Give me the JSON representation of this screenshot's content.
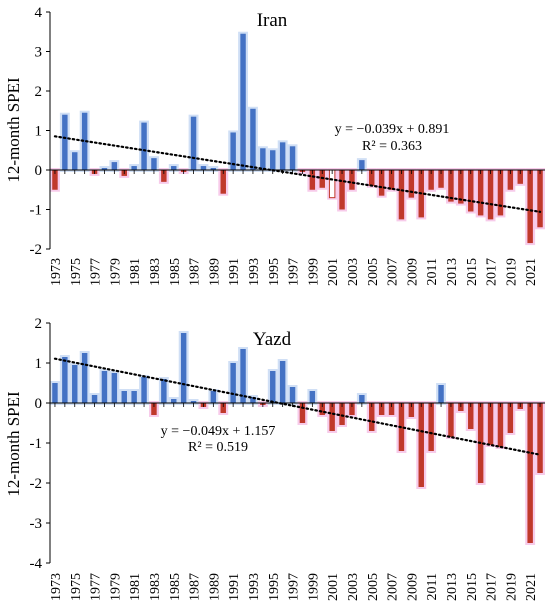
{
  "chart_data": [
    {
      "type": "bar",
      "title": "Iran",
      "ylabel": "12-month SPEI",
      "ylim": [
        -2,
        4
      ],
      "yticks": [
        -2,
        -1,
        0,
        1,
        2,
        3,
        4
      ],
      "x": [
        1973,
        1974,
        1975,
        1976,
        1977,
        1978,
        1979,
        1980,
        1981,
        1982,
        1983,
        1984,
        1985,
        1986,
        1987,
        1988,
        1989,
        1990,
        1991,
        1992,
        1993,
        1994,
        1995,
        1996,
        1997,
        1998,
        1999,
        2000,
        2001,
        2002,
        2003,
        2004,
        2005,
        2006,
        2007,
        2008,
        2009,
        2010,
        2011,
        2012,
        2013,
        2014,
        2015,
        2016,
        2017,
        2018,
        2019,
        2020,
        2021,
        2022
      ],
      "xtick_labels": [
        "1973",
        "1975",
        "1977",
        "1979",
        "1981",
        "1983",
        "1985",
        "1987",
        "1989",
        "1991",
        "1993",
        "1995",
        "1997",
        "1999",
        "2001",
        "2003",
        "2005",
        "2007",
        "2009",
        "2011",
        "2013",
        "2015",
        "2017",
        "2019",
        "2021"
      ],
      "values": [
        -0.5,
        1.4,
        0.45,
        1.45,
        -0.1,
        0.05,
        0.2,
        -0.15,
        0.1,
        1.2,
        0.3,
        -0.3,
        0.1,
        -0.05,
        1.35,
        0.1,
        0.05,
        -0.6,
        0.95,
        3.45,
        1.55,
        0.55,
        0.5,
        0.7,
        0.6,
        -0.05,
        -0.5,
        -0.45,
        -0.7,
        -1.0,
        -0.5,
        0.25,
        -0.4,
        -0.65,
        -0.5,
        -1.25,
        -0.7,
        -1.2,
        -0.5,
        -0.45,
        -0.8,
        -0.85,
        -1.05,
        -1.15,
        -1.25,
        -1.15,
        -0.5,
        -0.35,
        -1.85,
        -1.45
      ],
      "outlined_bar_year": 2001,
      "trendline": {
        "slope": -0.039,
        "intercept": 0.891,
        "style": "dotted"
      },
      "annotations": [
        "y = −0.039x + 0.891",
        "R² = 0.363"
      ],
      "colors": {
        "positive": "#4472c4",
        "negative": "#c0392b",
        "positive_highlight": "#a9c4ec",
        "negative_highlight": "#f0a0d8"
      },
      "grid": false
    },
    {
      "type": "bar",
      "title": "Yazd",
      "ylabel": "12-month SPEI",
      "ylim": [
        -4,
        2
      ],
      "yticks": [
        -4,
        -3,
        -2,
        -1,
        0,
        1,
        2
      ],
      "x": [
        1973,
        1974,
        1975,
        1976,
        1977,
        1978,
        1979,
        1980,
        1981,
        1982,
        1983,
        1984,
        1985,
        1986,
        1987,
        1988,
        1989,
        1990,
        1991,
        1992,
        1993,
        1994,
        1995,
        1996,
        1997,
        1998,
        1999,
        2000,
        2001,
        2002,
        2003,
        2004,
        2005,
        2006,
        2007,
        2008,
        2009,
        2010,
        2011,
        2012,
        2013,
        2014,
        2015,
        2016,
        2017,
        2018,
        2019,
        2020,
        2021,
        2022
      ],
      "xtick_labels": [
        "1973",
        "1975",
        "1977",
        "1979",
        "1981",
        "1983",
        "1985",
        "1987",
        "1989",
        "1991",
        "1993",
        "1995",
        "1997",
        "1999",
        "2001",
        "2003",
        "2005",
        "2007",
        "2009",
        "2011",
        "2013",
        "2015",
        "2017",
        "2019",
        "2021"
      ],
      "values": [
        0.5,
        1.15,
        0.95,
        1.25,
        0.2,
        0.8,
        0.75,
        0.3,
        0.3,
        0.65,
        -0.3,
        0.6,
        0.1,
        1.75,
        0.05,
        -0.1,
        0.3,
        -0.25,
        1.0,
        1.35,
        0.15,
        -0.05,
        0.8,
        1.05,
        0.4,
        -0.5,
        0.3,
        -0.3,
        -0.7,
        -0.55,
        -0.3,
        0.2,
        -0.7,
        -0.3,
        -0.3,
        -1.2,
        -0.35,
        -2.1,
        -1.2,
        0.45,
        -0.85,
        -0.2,
        -0.65,
        -2.0,
        -1.05,
        -1.1,
        -0.75,
        -0.15,
        -3.5,
        -1.75
      ],
      "trendline": {
        "slope": -0.049,
        "intercept": 1.157,
        "style": "dotted"
      },
      "annotations": [
        "y = −0.049x + 1.157",
        "R² = 0.519"
      ],
      "colors": {
        "positive": "#4472c4",
        "negative": "#c0392b",
        "positive_highlight": "#a9c4ec",
        "negative_highlight": "#f0a0d8"
      },
      "grid": false
    }
  ]
}
